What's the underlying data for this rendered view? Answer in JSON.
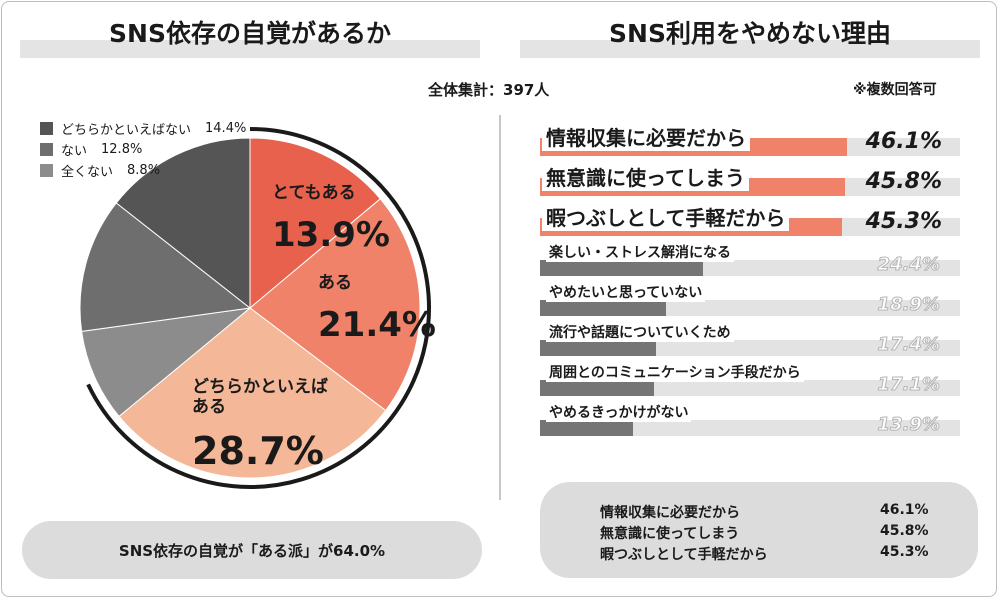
{
  "left": {
    "title": "SNS依存の自覚があるか",
    "summary": "SNS依存の自覚が「ある派」が64.0%"
  },
  "right": {
    "title": "SNS利用をやめない理由"
  },
  "total": "全体集計：397人",
  "note": "※複数回答可",
  "colors": {
    "accent": "#e8614d",
    "salmon": "#f0826a",
    "peach": "#f4b898",
    "dark_gray": "#555555",
    "mid_gray": "#6e6e6e",
    "light_gray": "#8c8c8c",
    "bar_gray": "#757575",
    "bar_track": "#e3e3e3"
  },
  "chart_data": [
    {
      "type": "pie",
      "title": "SNS依存の自覚があるか",
      "slices": [
        {
          "name": "とてもある",
          "value": 13.9,
          "label": "13.9%"
        },
        {
          "name": "ある",
          "value": 21.4,
          "label": "21.4%"
        },
        {
          "name": "どちらかといえばある",
          "value": 28.7,
          "label": "28.7%"
        },
        {
          "name": "全くない",
          "value": 8.8,
          "label": "8.8%"
        },
        {
          "name": "ない",
          "value": 12.8,
          "label": "12.8%"
        },
        {
          "name": "どちらかといえばない",
          "value": 14.4,
          "label": "14.4%"
        }
      ],
      "legend": [
        {
          "name": "どちらかといえばない",
          "pct": "14.4%"
        },
        {
          "name": "ない",
          "pct": "12.8%"
        },
        {
          "name": "全くない",
          "pct": "8.8%"
        }
      ],
      "legend_position": "top-left"
    },
    {
      "type": "bar",
      "orientation": "horizontal",
      "title": "SNS利用をやめない理由",
      "categories": [
        "情報収集に必要だから",
        "無意識に使ってしまう",
        "暇つぶしとして手軽だから",
        "楽しい・ストレス解消になる",
        "やめたいと思っていない",
        "流行や話題についていくため",
        "周囲とのコミュニケーション手段だから",
        "やめるきっかけがない"
      ],
      "values": [
        46.1,
        45.8,
        45.3,
        24.4,
        18.9,
        17.4,
        17.1,
        13.9
      ],
      "value_labels": [
        "46.1%",
        "45.8%",
        "45.3%",
        "24.4%",
        "18.9%",
        "17.4%",
        "17.1%",
        "13.9%"
      ],
      "xlim": [
        0,
        100
      ]
    }
  ],
  "top3": [
    {
      "label": "情報収集に必要だから",
      "value": "46.1%"
    },
    {
      "label": "無意識に使ってしまう",
      "value": "45.8%"
    },
    {
      "label": "暇つぶしとして手軽だから",
      "value": "45.3%"
    }
  ]
}
